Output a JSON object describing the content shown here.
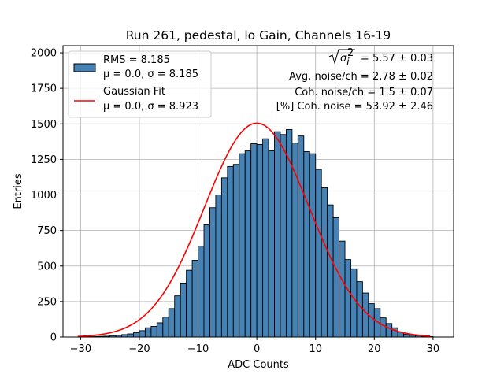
{
  "chart_data": {
    "type": "bar",
    "title": "Run 261, pedestal, lo Gain, Channels 16-19",
    "xlabel": "ADC Counts",
    "ylabel": "Entries",
    "xlim": [
      -33,
      33.5
    ],
    "ylim": [
      0,
      2050
    ],
    "xticks": [
      -30,
      -20,
      -10,
      0,
      10,
      20,
      30
    ],
    "yticks": [
      0,
      250,
      500,
      750,
      1000,
      1250,
      1500,
      1750,
      2000
    ],
    "grid": true,
    "bar_color": "#4682b4",
    "fit_color": "#ff0000",
    "legend_placement": "top-left",
    "legend": [
      {
        "kind": "bar",
        "line1": "RMS = 8.185",
        "line2": "μ = 0.0, σ = 8.185"
      },
      {
        "kind": "line",
        "line1": "Gaussian Fit",
        "line2": "μ = 0.0, σ = 8.923"
      }
    ],
    "annotations": [
      "= 5.57 ± 0.03",
      "Avg. noise/ch = 2.78 ± 0.02",
      "Coh. noise/ch = 1.5 ± 0.07",
      "[%] Coh. noise = 53.92 ± 2.46"
    ],
    "histogram": {
      "bin_start": -30,
      "bin_width": 1,
      "counts": [
        2,
        3,
        4,
        5,
        6,
        10,
        12,
        17,
        22,
        30,
        45,
        65,
        75,
        100,
        140,
        200,
        290,
        380,
        470,
        540,
        640,
        790,
        910,
        1000,
        1120,
        1200,
        1215,
        1290,
        1310,
        1360,
        1355,
        1395,
        1310,
        1445,
        1425,
        1460,
        1365,
        1415,
        1305,
        1290,
        1180,
        1050,
        930,
        840,
        675,
        545,
        480,
        390,
        310,
        235,
        200,
        135,
        95,
        65,
        35,
        20,
        12,
        10,
        5,
        3
      ]
    },
    "fit": {
      "mu": 0.0,
      "sigma": 8.923,
      "amplitude": 1505,
      "x_range": [
        -30.5,
        29.5
      ]
    }
  }
}
